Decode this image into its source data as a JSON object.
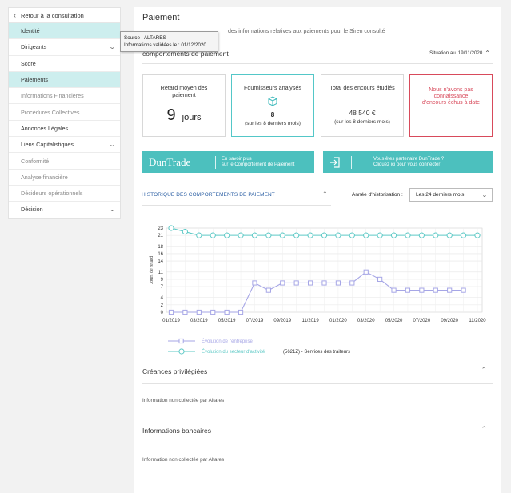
{
  "sidebar": {
    "back_label": "Retour à la consultation",
    "items": [
      {
        "label": "Identité",
        "active": true,
        "muted": false,
        "chevron": false
      },
      {
        "label": "Dirigeants",
        "active": false,
        "muted": false,
        "chevron": true
      },
      {
        "label": "Score",
        "active": false,
        "muted": false,
        "chevron": false
      },
      {
        "label": "Paiements",
        "active": true,
        "muted": false,
        "chevron": false
      },
      {
        "label": "Informations Financières",
        "active": false,
        "muted": true,
        "chevron": false
      },
      {
        "label": "Procédures Collectives",
        "active": false,
        "muted": true,
        "chevron": false
      },
      {
        "label": "Annonces Légales",
        "active": false,
        "muted": false,
        "chevron": false
      },
      {
        "label": "Liens Capitalistiques",
        "active": false,
        "muted": false,
        "chevron": true
      },
      {
        "label": "Conformité",
        "active": false,
        "muted": true,
        "chevron": false
      },
      {
        "label": "Analyse financière",
        "active": false,
        "muted": true,
        "chevron": false
      },
      {
        "label": "Décideurs opérationnels",
        "active": false,
        "muted": true,
        "chevron": false
      },
      {
        "label": "Décision",
        "active": false,
        "muted": false,
        "chevron": true
      }
    ]
  },
  "tooltip": {
    "source": "Source : ALTARES",
    "validated": "Informations validées le : 01/12/2020"
  },
  "header": {
    "title": "Paiement",
    "subtitle": "des informations relatives aux paiements pour le Siren consulté",
    "section_title": "comportements de paiement",
    "situation_label": "Situation au",
    "situation_date": "19/11/2020"
  },
  "cards": {
    "retard": {
      "title": "Retard moyen des paiement",
      "value": "9",
      "unit": "jours"
    },
    "fournisseurs": {
      "title": "Fournisseurs analysés",
      "value": "8",
      "sub": "(sur les 8 derniers mois)"
    },
    "encours": {
      "title": "Total des encours étudiés",
      "value": "48 540 €",
      "sub": "(sur les 8 derniers mois)"
    },
    "alert": {
      "text": "Nous n'avons pas connaissance d'encours échus à date"
    }
  },
  "banners": {
    "left": {
      "logo": "DunTrade",
      "line1": "En savoir plus",
      "line2": "sur le Comportement de Paiement"
    },
    "right": {
      "line1": "Vous êtes partenaire DunTrade ?",
      "line2": "Cliquez ici pour vous connecter"
    }
  },
  "history": {
    "title": "HISTORIQUE DES COMPORTEMENTS DE PAIEMENT",
    "annee_label": "Année d'historisation :",
    "select_value": "Les 24 derniers mois"
  },
  "colors": {
    "teal": "#4cc0be",
    "entreprise": "#a6a6e6",
    "secteur": "#5ec9c6",
    "alert": "#d84a5b",
    "link": "#2a5ea3"
  },
  "chart_data": {
    "type": "line",
    "ylabel": "Jours de retard",
    "ylim": [
      0,
      23
    ],
    "yticks": [
      0,
      2,
      4,
      7,
      9,
      11,
      14,
      16,
      18,
      21,
      23
    ],
    "x_ticks": [
      "01/2019",
      "03/2019",
      "05/2019",
      "07/2019",
      "09/2019",
      "11/2019",
      "01/2020",
      "03/2020",
      "05/2020",
      "07/2020",
      "09/2020",
      "11/2020"
    ],
    "x": [
      "01/2019",
      "02/2019",
      "03/2019",
      "04/2019",
      "05/2019",
      "06/2019",
      "07/2019",
      "08/2019",
      "09/2019",
      "10/2019",
      "11/2019",
      "12/2019",
      "01/2020",
      "02/2020",
      "03/2020",
      "04/2020",
      "05/2020",
      "06/2020",
      "07/2020",
      "08/2020",
      "09/2020",
      "10/2020",
      "11/2020"
    ],
    "series": [
      {
        "name": "Évolution de l'entreprise",
        "values": [
          0,
          0,
          0,
          0,
          0,
          0,
          8,
          6,
          8,
          8,
          8,
          8,
          8,
          8,
          11,
          9,
          6,
          6,
          6,
          6,
          6,
          6,
          null
        ]
      },
      {
        "name": "Évolution du secteur d'activité",
        "label_code": "(5621Z) - Services des traiteurs",
        "values": [
          23,
          22,
          21,
          21,
          21,
          21,
          21,
          21,
          21,
          21,
          21,
          21,
          21,
          21,
          21,
          21,
          21,
          21,
          21,
          21,
          21,
          21,
          21
        ]
      }
    ],
    "grid": true,
    "legend": "bottom-left"
  },
  "sections": {
    "creances": {
      "title": "Créances privilégiées",
      "note": "Information non collectée par Altares"
    },
    "bancaires": {
      "title": "Informations bancaires",
      "note": "Information non collectée par Altares"
    }
  }
}
